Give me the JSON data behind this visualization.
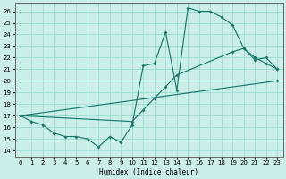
{
  "xlabel": "Humidex (Indice chaleur)",
  "bg_color": "#cceee8",
  "grid_color": "#99ddd4",
  "line_color": "#1a7a6e",
  "xlim": [
    -0.5,
    23.5
  ],
  "ylim": [
    13.5,
    26.7
  ],
  "yticks": [
    14,
    15,
    16,
    17,
    18,
    19,
    20,
    21,
    22,
    23,
    24,
    25,
    26
  ],
  "xticks": [
    0,
    1,
    2,
    3,
    4,
    5,
    6,
    7,
    8,
    9,
    10,
    11,
    12,
    13,
    14,
    15,
    16,
    17,
    18,
    19,
    20,
    21,
    22,
    23
  ],
  "line1_x": [
    0,
    1,
    2,
    3,
    4,
    5,
    6,
    7,
    8,
    9,
    10,
    11,
    12,
    13,
    14,
    15,
    16,
    17,
    18,
    19,
    20,
    21,
    22,
    23
  ],
  "line1_y": [
    17.0,
    16.5,
    16.2,
    15.5,
    15.2,
    15.2,
    15.0,
    14.3,
    15.2,
    14.7,
    16.2,
    21.3,
    21.5,
    24.2,
    19.2,
    26.3,
    26.0,
    26.0,
    25.5,
    24.8,
    22.8,
    21.8,
    22.0,
    21.0
  ],
  "line2_x": [
    0,
    10,
    11,
    12,
    13,
    14,
    19,
    20,
    21,
    22,
    23
  ],
  "line2_y": [
    17.0,
    16.5,
    17.5,
    18.5,
    19.5,
    20.5,
    22.5,
    22.8,
    22.0,
    21.5,
    21.0
  ],
  "line3_x": [
    0,
    23
  ],
  "line3_y": [
    17.0,
    20.0
  ]
}
